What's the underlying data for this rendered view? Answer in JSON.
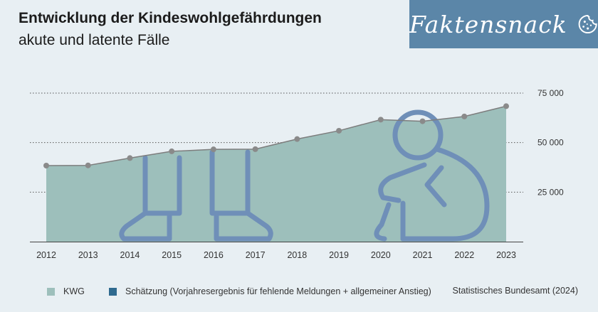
{
  "header": {
    "title": "Entwicklung der Kindeswohlgefährdungen",
    "subtitle": "akute und latente Fälle"
  },
  "brand": {
    "label": "Faktensnack",
    "icon": "cookie-icon",
    "color": "#5b86a8"
  },
  "chart_data": {
    "type": "area",
    "x": [
      "2012",
      "2013",
      "2014",
      "2015",
      "2016",
      "2017",
      "2018",
      "2019",
      "2020",
      "2021",
      "2022",
      "2023"
    ],
    "series": [
      {
        "name": "KWG",
        "values": [
          38400,
          38500,
          42200,
          45600,
          46600,
          46700,
          51800,
          56000,
          61600,
          60800,
          63200,
          68400
        ],
        "color": "#9dbfbb"
      }
    ],
    "ylim": [
      0,
      75000
    ],
    "yticks": [
      25000,
      50000,
      75000
    ],
    "ytick_labels": [
      "25 000",
      "50 000",
      "75 000"
    ],
    "grid": "dotted-horizontal",
    "point_color": "#8a8a8a"
  },
  "legend": {
    "items": [
      {
        "label": "KWG",
        "color": "#9dbfbb"
      },
      {
        "label": "Schätzung (Vorjahresergebnis für fehlende Meldungen + allgemeiner Anstieg)",
        "color": "#2f6a8f"
      }
    ]
  },
  "source": "Statistisches Bundesamt (2024)",
  "illustration": {
    "icon": "sad-child-illustration",
    "color": "#6f8fb8"
  }
}
